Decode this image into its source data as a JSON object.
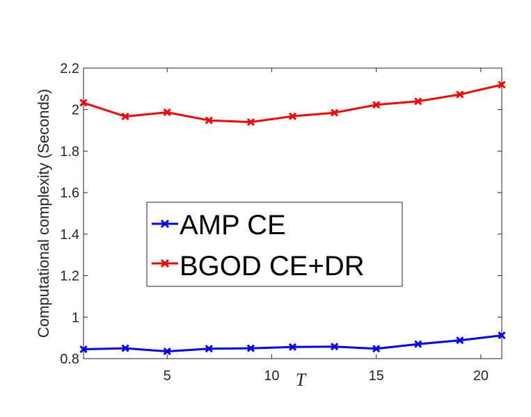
{
  "chart_data": {
    "type": "line",
    "xlabel": "T",
    "ylabel": "Computational complexity (Seconds)",
    "xlim": [
      1,
      21
    ],
    "ylim": [
      0.8,
      2.2
    ],
    "xticks": [
      5,
      10,
      15,
      20
    ],
    "yticks": [
      0.8,
      1,
      1.2,
      1.4,
      1.6,
      1.8,
      2,
      2.2
    ],
    "ytick_labels": [
      "0.8",
      "1",
      "1.2",
      "1.4",
      "1.6",
      "1.8",
      "2",
      "2.2"
    ],
    "xtick_labels": [
      "5",
      "10",
      "15",
      "20"
    ],
    "grid": false,
    "legend_position": "center-left",
    "x": [
      1,
      3,
      5,
      7,
      9,
      11,
      13,
      15,
      17,
      19,
      21
    ],
    "series": [
      {
        "name": "AMP CE",
        "color": "#0000ff",
        "marker": "x",
        "values": [
          0.845,
          0.85,
          0.835,
          0.848,
          0.85,
          0.856,
          0.858,
          0.848,
          0.87,
          0.888,
          0.912
        ]
      },
      {
        "name": "BGOD CE+DR",
        "color": "#ff0000",
        "marker": "x",
        "values": [
          2.033,
          1.967,
          1.987,
          1.948,
          1.94,
          1.968,
          1.985,
          2.023,
          2.04,
          2.073,
          2.12
        ]
      }
    ]
  }
}
